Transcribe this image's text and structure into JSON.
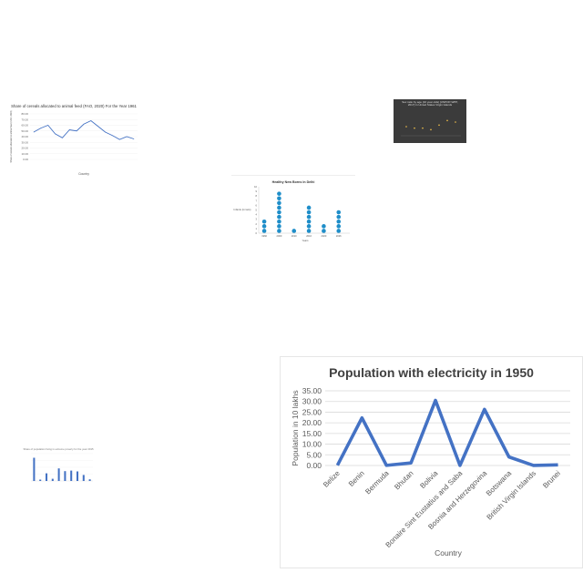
{
  "chart_data": [
    {
      "type": "line",
      "title": "Share of cereals allocated to animal feed (FAO, 2020) For the Year 1961",
      "xlabel": "Country",
      "ylabel": "Share of cereals allocated to animal feed (FAO, 2020)",
      "categories": [
        "",
        "",
        "",
        "",
        "",
        "",
        "",
        "",
        "",
        "",
        "",
        "",
        "",
        "",
        ""
      ],
      "values": [
        48,
        55,
        60,
        45,
        38,
        52,
        50,
        62,
        68,
        58,
        48,
        42,
        35,
        40,
        36
      ],
      "yticks": [
        "0.00",
        "10.00",
        "20.00",
        "30.00",
        "40.00",
        "50.00",
        "60.00",
        "70.00",
        "80.00"
      ],
      "ylim": [
        0,
        80
      ],
      "color": "#4472c4"
    },
    {
      "type": "scatter",
      "title": "Sex ratio by age (10 year olds) [UNPOP-WPP, 2017] in United States Virgin Islands",
      "x": [
        2008,
        2009,
        2010,
        2011,
        2012,
        2013,
        2014
      ],
      "y": [
        101,
        100,
        100,
        99,
        102,
        105,
        104
      ],
      "ylim": [
        95,
        110
      ],
      "color": "#f2c04a"
    },
    {
      "type": "scatter",
      "title": "Healthy New Borns In Delhi",
      "xlabel": "Years",
      "ylabel": "Infants (in lacs)",
      "categories": [
        "1960",
        "2000",
        "2010",
        "2016",
        "2020",
        "2026"
      ],
      "values": [
        3,
        9,
        1,
        6,
        2,
        5
      ],
      "ylim": [
        0,
        10
      ],
      "color": "#1f8ec9"
    },
    {
      "type": "bar",
      "title": "Share of population living in extreme poverty for the year 2015",
      "categories": [
        "",
        "",
        "",
        "",
        "",
        "",
        "",
        "",
        "",
        ""
      ],
      "values": [
        85,
        5,
        28,
        8,
        46,
        36,
        38,
        35,
        22,
        6
      ],
      "ylim": [
        0,
        100
      ],
      "color": "#4472c4"
    },
    {
      "type": "line",
      "title": "Population with electricity in 1950",
      "xlabel": "Country",
      "ylabel": "Population in 10 lakhs",
      "categories": [
        "Belize",
        "Benin",
        "Bermuda",
        "Bhutan",
        "Bolivia",
        "Bonaire Sint Eustatius and Saba",
        "Bosnia and Herzegovina",
        "Botswana",
        "British Virgin Islands",
        "Brunei"
      ],
      "values": [
        0.1,
        22.3,
        0.05,
        1.2,
        30.5,
        0.02,
        26.3,
        4.0,
        0.02,
        0.3
      ],
      "yticks": [
        "0.00",
        "5.00",
        "10.00",
        "15.00",
        "20.00",
        "25.00",
        "30.00",
        "35.00"
      ],
      "ylim": [
        0,
        35
      ],
      "color": "#4472c4"
    }
  ]
}
